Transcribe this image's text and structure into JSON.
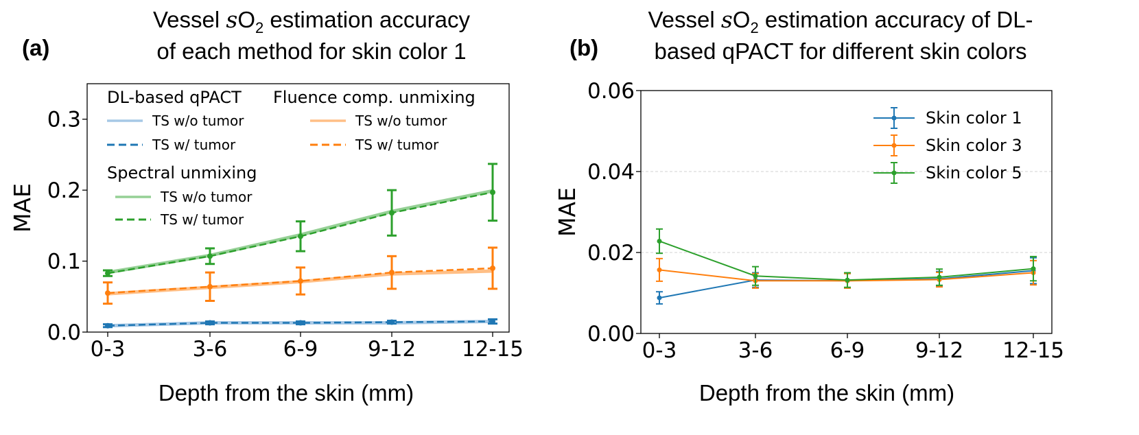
{
  "panel_a": {
    "label": "(a)",
    "title_line1_pre": "Vessel ",
    "title_s": "s",
    "title_o": "O",
    "title_sub": "2",
    "title_line1_post": " estimation accuracy",
    "title_line2": "of each method for skin color 1"
  },
  "panel_b": {
    "label": "(b)",
    "title_line1_pre": "Vessel ",
    "title_s": "s",
    "title_o": "O",
    "title_sub": "2",
    "title_line1_post": " estimation accuracy of DL-",
    "title_line2": "based qPACT for different skin colors"
  },
  "legend_a": {
    "group1": "DL-based qPACT",
    "group2": "Fluence comp. unmixing",
    "group3": "Spectral unmixing",
    "solid": "TS w/o tumor",
    "dashed": "TS w/ tumor"
  },
  "colors": {
    "blue": "#1f77b4",
    "blue_light": "#a6c8e6",
    "orange": "#ff7f0e",
    "orange_light": "#ffbf86",
    "green": "#2ca02c",
    "green_light": "#95d095"
  },
  "chart_data": [
    {
      "type": "line",
      "title": "Vessel sO2 estimation accuracy of each method for skin color 1",
      "xlabel": "Depth from the skin (mm)",
      "ylabel": "MAE",
      "categories": [
        "0-3",
        "3-6",
        "6-9",
        "9-12",
        "12-15"
      ],
      "ylim": [
        0,
        0.35
      ],
      "yticks": [
        "0.0",
        "0.1",
        "0.2",
        "0.3"
      ],
      "ytick_values": [
        0,
        0.1,
        0.2,
        0.3
      ],
      "series": [
        {
          "name": "DL-based qPACT, TS w/o tumor",
          "color": "#a6c8e6",
          "style": "solid",
          "values": [
            0.009,
            0.013,
            0.013,
            0.013,
            0.015
          ]
        },
        {
          "name": "DL-based qPACT, TS w/ tumor",
          "color": "#1f77b4",
          "style": "dashed",
          "values": [
            0.009,
            0.013,
            0.013,
            0.014,
            0.015
          ],
          "err": [
            0.002,
            0.002,
            0.002,
            0.002,
            0.003
          ]
        },
        {
          "name": "Fluence comp. unmixing, TS w/o tumor",
          "color": "#ffbf86",
          "style": "solid",
          "values": [
            0.054,
            0.063,
            0.071,
            0.082,
            0.086
          ]
        },
        {
          "name": "Fluence comp. unmixing, TS w/ tumor",
          "color": "#ff7f0e",
          "style": "dashed",
          "values": [
            0.055,
            0.064,
            0.072,
            0.084,
            0.09
          ],
          "err": [
            0.015,
            0.02,
            0.019,
            0.023,
            0.029
          ]
        },
        {
          "name": "Spectral unmixing, TS w/o tumor",
          "color": "#95d095",
          "style": "solid",
          "values": [
            0.084,
            0.108,
            0.137,
            0.17,
            0.199
          ]
        },
        {
          "name": "Spectral unmixing, TS w/ tumor",
          "color": "#2ca02c",
          "style": "dashed",
          "values": [
            0.083,
            0.107,
            0.135,
            0.168,
            0.197
          ],
          "err": [
            0.004,
            0.011,
            0.021,
            0.032,
            0.04
          ]
        }
      ]
    },
    {
      "type": "line",
      "title": "Vessel sO2 estimation accuracy of DL-based qPACT for different skin colors",
      "xlabel": "Depth from the skin (mm)",
      "ylabel": "MAE",
      "categories": [
        "0-3",
        "3-6",
        "6-9",
        "9-12",
        "12-15"
      ],
      "ylim": [
        0,
        0.06
      ],
      "yticks": [
        "0.00",
        "0.02",
        "0.04",
        "0.06"
      ],
      "ytick_values": [
        0,
        0.02,
        0.04,
        0.06
      ],
      "grid": true,
      "legend": "top-right",
      "series": [
        {
          "name": "Skin color 1",
          "color": "#1f77b4",
          "values": [
            0.0088,
            0.0132,
            0.013,
            0.0135,
            0.0155
          ],
          "err": [
            0.0015,
            0.0018,
            0.0018,
            0.0018,
            0.0032
          ]
        },
        {
          "name": "Skin color 3",
          "color": "#ff7f0e",
          "values": [
            0.0157,
            0.013,
            0.013,
            0.0133,
            0.015
          ],
          "err": [
            0.0028,
            0.0018,
            0.0018,
            0.0018,
            0.003
          ]
        },
        {
          "name": "Skin color 5",
          "color": "#2ca02c",
          "values": [
            0.0228,
            0.0142,
            0.0132,
            0.0139,
            0.016
          ],
          "err": [
            0.003,
            0.0023,
            0.0018,
            0.002,
            0.003
          ]
        }
      ]
    }
  ]
}
